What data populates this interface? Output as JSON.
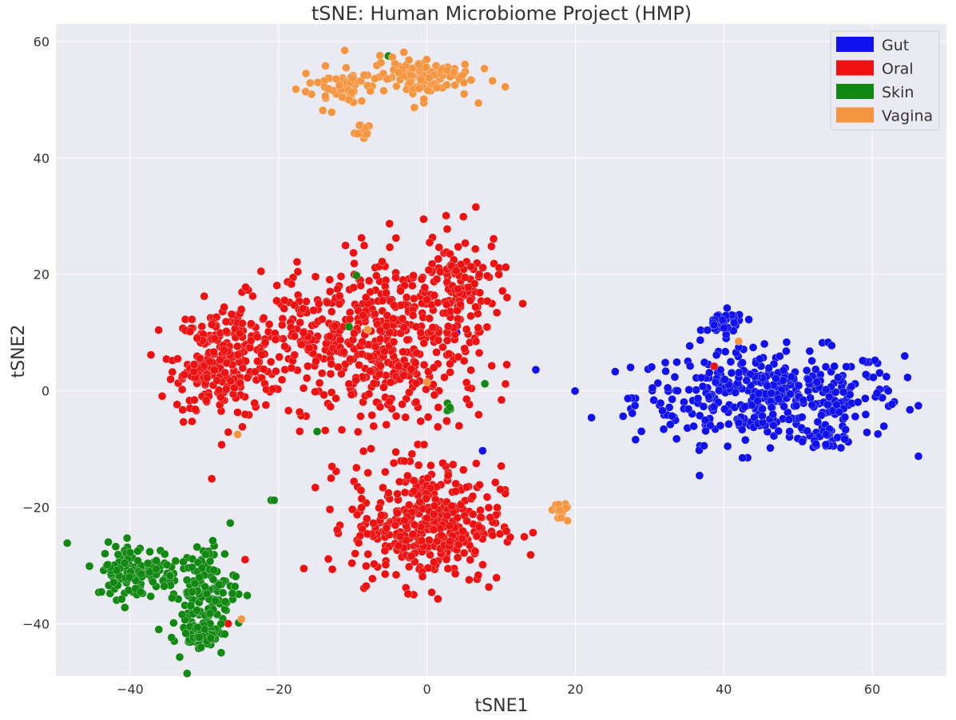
{
  "chart_data": {
    "type": "scatter",
    "title": "tSNE: Human Microbiome Project (HMP)",
    "xlabel": "tSNE1",
    "ylabel": "tSNE2",
    "xlim": [
      -50,
      70
    ],
    "ylim": [
      -49,
      63
    ],
    "xticks": [
      -40,
      -20,
      0,
      20,
      40,
      60
    ],
    "yticks": [
      -40,
      -20,
      0,
      20,
      40,
      60
    ],
    "xtick_labels": [
      "−40",
      "−20",
      "0",
      "20",
      "40",
      "60"
    ],
    "ytick_labels": [
      "−40",
      "−20",
      "0",
      "20",
      "40",
      "60"
    ],
    "grid": true,
    "background": "#eaeaf2",
    "legend_position": "top-right",
    "series": [
      {
        "name": "Gut",
        "color": "#1111ee",
        "clusters": [
          {
            "center": [
              46,
              -1
            ],
            "spread": [
              9,
              4
            ],
            "count": 420
          },
          {
            "center": [
              40,
              11.5
            ],
            "spread": [
              1.4,
              1.1
            ],
            "count": 40
          },
          {
            "center": [
              54,
              -8
            ],
            "spread": [
              1.8,
              1.0
            ],
            "count": 30
          }
        ],
        "points": [
          [
            4,
            10
          ],
          [
            7.5,
            -10.3
          ]
        ]
      },
      {
        "name": "Oral",
        "color": "#ee1111",
        "clusters": [
          {
            "center": [
              -27,
              5
            ],
            "spread": [
              3.5,
              5
            ],
            "count": 230
          },
          {
            "center": [
              -31.5,
              3.2
            ],
            "spread": [
              1.4,
              1.0
            ],
            "count": 45
          },
          {
            "center": [
              -14,
              9
            ],
            "spread": [
              5,
              6
            ],
            "count": 220
          },
          {
            "center": [
              -3,
              7
            ],
            "spread": [
              5,
              8
            ],
            "count": 300
          },
          {
            "center": [
              4,
              17
            ],
            "spread": [
              3,
              5
            ],
            "count": 120
          },
          {
            "center": [
              0,
              -23
            ],
            "spread": [
              5,
              5
            ],
            "count": 380
          }
        ],
        "points": [
          [
            -24.5,
            -29
          ],
          [
            -12.8,
            -13
          ],
          [
            38.7,
            4.2
          ],
          [
            -26.8,
            -40
          ]
        ]
      },
      {
        "name": "Skin",
        "color": "#118811",
        "clusters": [
          {
            "center": [
              -39,
              -31
            ],
            "spread": [
              2.8,
              2.3
            ],
            "count": 130
          },
          {
            "center": [
              -30,
              -35
            ],
            "spread": [
              2.2,
              4.5
            ],
            "count": 140
          },
          {
            "center": [
              -31,
              -42
            ],
            "spread": [
              1.0,
              1.0
            ],
            "count": 60
          },
          {
            "center": [
              2.8,
              -3
            ],
            "spread": [
              0.3,
              0.5
            ],
            "count": 8
          }
        ],
        "points": [
          [
            -9.5,
            19.8
          ],
          [
            -10.5,
            11
          ],
          [
            7.8,
            1.2
          ],
          [
            -14.8,
            -7
          ],
          [
            -21,
            -18.8
          ],
          [
            -20.6,
            -18.8
          ],
          [
            -5.2,
            57.5
          ]
        ]
      },
      {
        "name": "Vagina",
        "color": "#f59540",
        "clusters": [
          {
            "center": [
              -1,
              54
            ],
            "spread": [
              3.5,
              1.8
            ],
            "count": 110
          },
          {
            "center": [
              -12,
              52
            ],
            "spread": [
              2.5,
              1.8
            ],
            "count": 50
          },
          {
            "center": [
              -9,
              45
            ],
            "spread": [
              0.7,
              0.9
            ],
            "count": 15
          },
          {
            "center": [
              18,
              -21
            ],
            "spread": [
              0.6,
              0.8
            ],
            "count": 20
          }
        ],
        "points": [
          [
            -25.5,
            -7.5
          ],
          [
            -8,
            10.5
          ],
          [
            0,
            1.5
          ],
          [
            42,
            8.5
          ],
          [
            -25,
            -39.2
          ]
        ]
      }
    ]
  }
}
